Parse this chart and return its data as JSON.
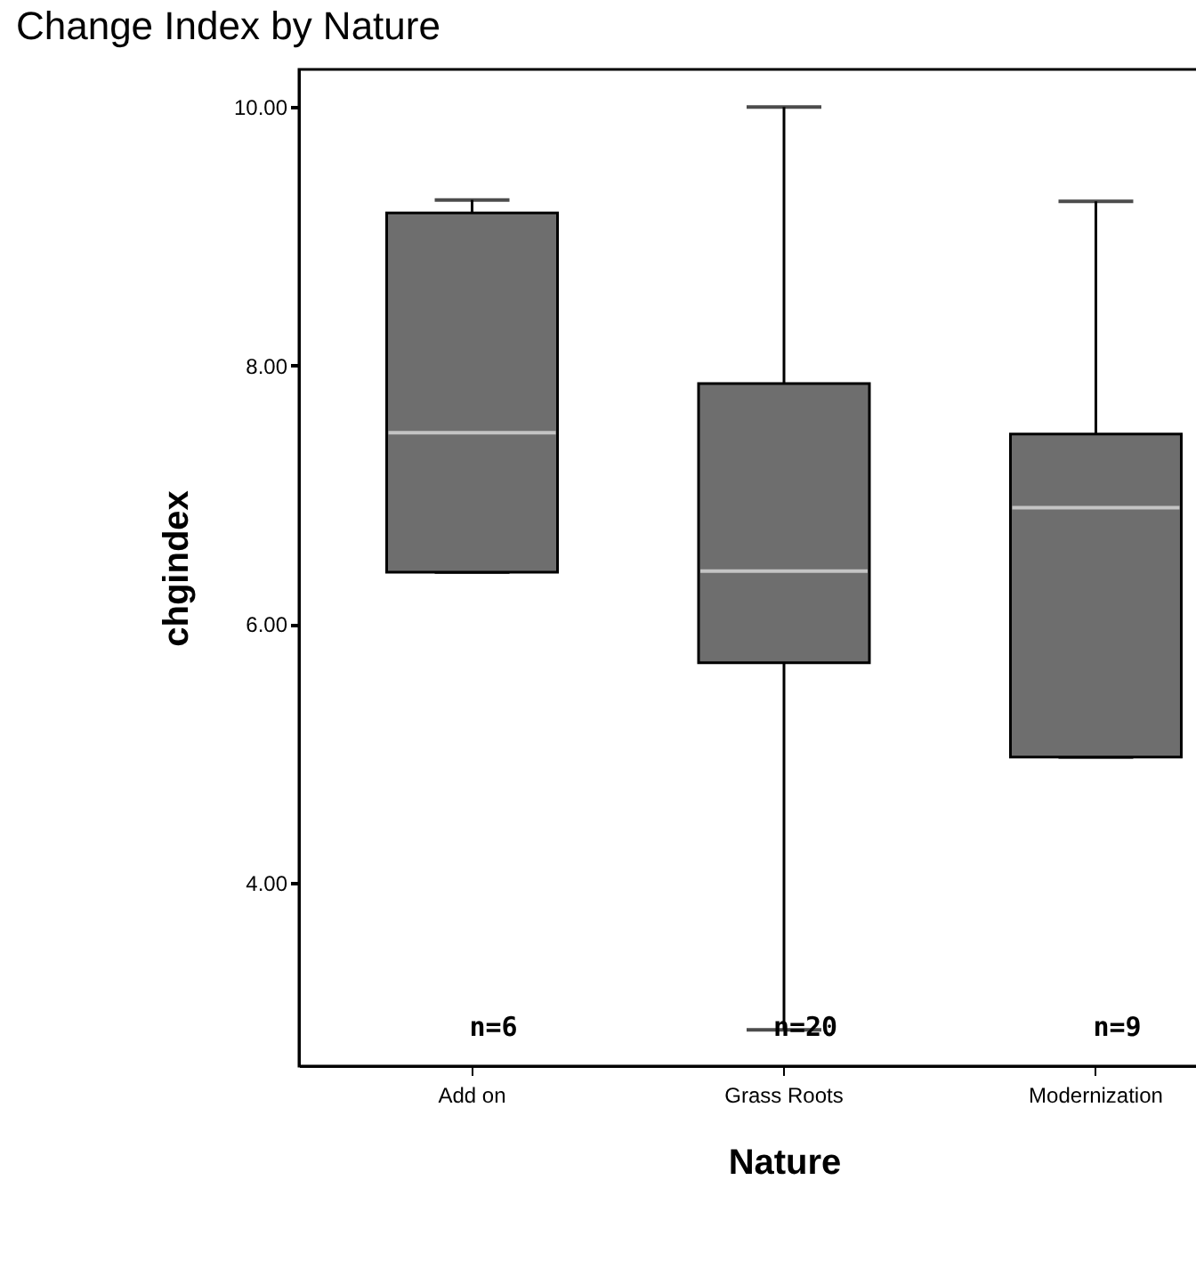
{
  "chart_data": {
    "type": "box",
    "title": "Change Index by Nature",
    "xlabel": "Nature",
    "ylabel": "chgindex",
    "categories": [
      "Add on",
      "Grass Roots",
      "Modernization"
    ],
    "series": [
      {
        "color": "#6e6e6e",
        "boxes": [
          {
            "low": 6.4,
            "q1": 6.4,
            "median": 7.48,
            "q3": 9.18,
            "high": 9.28
          },
          {
            "low": 2.86,
            "q1": 5.7,
            "median": 6.41,
            "q3": 7.86,
            "high": 10.0
          },
          {
            "low": 4.97,
            "q1": 4.97,
            "median": 6.9,
            "q3": 7.47,
            "high": 9.27
          }
        ]
      }
    ],
    "ylim": [
      2.58,
      10.29
    ],
    "yticks": [
      {
        "value": 4,
        "label": "4.00"
      },
      {
        "value": 6,
        "label": "6.00"
      },
      {
        "value": 8,
        "label": "8.00"
      },
      {
        "value": 10,
        "label": "10.00"
      }
    ],
    "grid": false,
    "annotations": [
      "n=6",
      "n=20",
      "n=9"
    ]
  }
}
